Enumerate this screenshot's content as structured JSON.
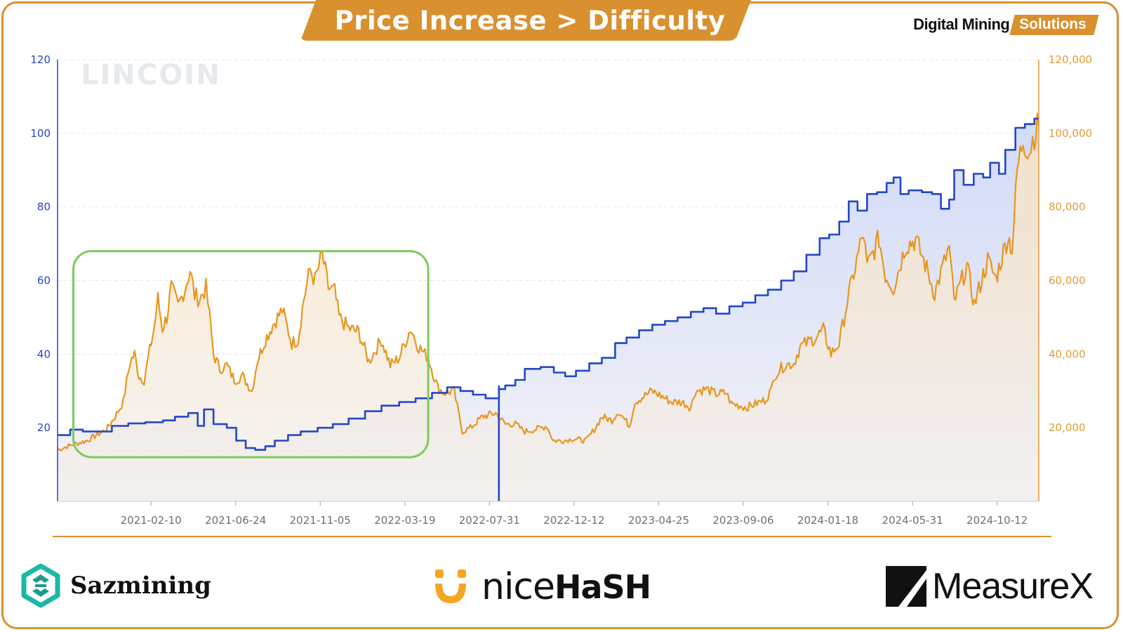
{
  "header": {
    "title": "Price Increase > Difficulty",
    "brand_main": "Digital Mining",
    "brand_accent": "Solutions",
    "accent_color": "#d9912f"
  },
  "watermark": "LINCOIN",
  "footer": {
    "sazmining": "Sazmining",
    "nicehash_part1": "nice",
    "nicehash_part2": "HaSH",
    "measurex": "MeasureX"
  },
  "chart_data": {
    "type": "line",
    "title": "",
    "xlabel": "",
    "ylabel_left": "",
    "ylabel_right": "",
    "x_start": "2020-09-15",
    "x_end": "2024-12-17",
    "x_ticks": [
      "2021-02-10",
      "2021-06-24",
      "2021-11-05",
      "2022-03-19",
      "2022-07-31",
      "2022-12-12",
      "2023-04-25",
      "2023-09-06",
      "2024-01-18",
      "2024-05-31",
      "2024-10-12"
    ],
    "left_axis": {
      "min": 0,
      "max": 120,
      "ticks": [
        "20",
        "40",
        "60",
        "80",
        "100",
        "120"
      ]
    },
    "right_axis": {
      "min": 0,
      "max": 120000,
      "ticks": [
        "20,000",
        "40,000",
        "60,000",
        "80,000",
        "100,000",
        "120,000"
      ]
    },
    "grid": true,
    "highlight_box": {
      "from": "2020-10-10",
      "to": "2022-04-25",
      "y_from": 12,
      "y_to": 68,
      "color": "#7ccb5a"
    },
    "series": [
      {
        "axis": "left",
        "color": "#2347c8",
        "points": [
          [
            "2020-09-15",
            18.0
          ],
          [
            "2020-10-05",
            19.5
          ],
          [
            "2020-10-25",
            19.0
          ],
          [
            "2020-11-20",
            19.0
          ],
          [
            "2020-12-10",
            20.5
          ],
          [
            "2021-01-05",
            21.2
          ],
          [
            "2021-02-01",
            21.5
          ],
          [
            "2021-03-01",
            22.0
          ],
          [
            "2021-03-20",
            23.0
          ],
          [
            "2021-04-10",
            24.0
          ],
          [
            "2021-04-25",
            20.5
          ],
          [
            "2021-05-05",
            25.0
          ],
          [
            "2021-05-20",
            21.0
          ],
          [
            "2021-06-10",
            20.0
          ],
          [
            "2021-06-25",
            16.5
          ],
          [
            "2021-07-10",
            14.5
          ],
          [
            "2021-07-25",
            14.0
          ],
          [
            "2021-08-10",
            15.0
          ],
          [
            "2021-08-25",
            16.5
          ],
          [
            "2021-09-15",
            18.0
          ],
          [
            "2021-10-05",
            19.0
          ],
          [
            "2021-11-01",
            20.0
          ],
          [
            "2021-11-25",
            21.0
          ],
          [
            "2021-12-20",
            22.5
          ],
          [
            "2022-01-15",
            24.5
          ],
          [
            "2022-02-10",
            26.0
          ],
          [
            "2022-03-10",
            27.0
          ],
          [
            "2022-04-05",
            28.0
          ],
          [
            "2022-05-01",
            29.5
          ],
          [
            "2022-05-25",
            31.0
          ],
          [
            "2022-06-15",
            30.0
          ],
          [
            "2022-07-05",
            29.0
          ],
          [
            "2022-07-25",
            28.0
          ],
          [
            "2022-08-15",
            30.5
          ],
          [
            "2022-08-25",
            31.5
          ],
          [
            "2022-09-10",
            33.0
          ],
          [
            "2022-09-25",
            36.0
          ],
          [
            "2022-10-20",
            36.5
          ],
          [
            "2022-11-10",
            35.0
          ],
          [
            "2022-11-28",
            34.0
          ],
          [
            "2022-12-15",
            35.5
          ],
          [
            "2023-01-05",
            37.5
          ],
          [
            "2023-01-25",
            39.0
          ],
          [
            "2023-02-15",
            43.0
          ],
          [
            "2023-03-05",
            44.5
          ],
          [
            "2023-03-25",
            46.5
          ],
          [
            "2023-04-15",
            48.0
          ],
          [
            "2023-05-05",
            49.0
          ],
          [
            "2023-05-25",
            50.0
          ],
          [
            "2023-06-15",
            51.5
          ],
          [
            "2023-07-05",
            52.5
          ],
          [
            "2023-07-25",
            51.0
          ],
          [
            "2023-08-15",
            53.0
          ],
          [
            "2023-09-05",
            54.0
          ],
          [
            "2023-09-25",
            56.0
          ],
          [
            "2023-10-15",
            57.5
          ],
          [
            "2023-11-05",
            60.0
          ],
          [
            "2023-11-25",
            62.5
          ],
          [
            "2023-12-15",
            67.0
          ],
          [
            "2024-01-05",
            71.5
          ],
          [
            "2024-01-20",
            72.5
          ],
          [
            "2024-02-05",
            76.0
          ],
          [
            "2024-02-20",
            81.5
          ],
          [
            "2024-03-05",
            79.0
          ],
          [
            "2024-03-20",
            83.5
          ],
          [
            "2024-04-05",
            84.0
          ],
          [
            "2024-04-20",
            86.5
          ],
          [
            "2024-05-01",
            88.0
          ],
          [
            "2024-05-12",
            83.5
          ],
          [
            "2024-05-25",
            84.5
          ],
          [
            "2024-06-15",
            84.0
          ],
          [
            "2024-07-01",
            83.5
          ],
          [
            "2024-07-15",
            79.5
          ],
          [
            "2024-07-28",
            82.0
          ],
          [
            "2024-08-05",
            90.0
          ],
          [
            "2024-08-20",
            86.0
          ],
          [
            "2024-09-05",
            89.0
          ],
          [
            "2024-09-20",
            88.0
          ],
          [
            "2024-10-01",
            92.0
          ],
          [
            "2024-10-15",
            89.0
          ],
          [
            "2024-10-25",
            95.5
          ],
          [
            "2024-11-10",
            101.5
          ],
          [
            "2024-11-25",
            102.5
          ],
          [
            "2024-12-10",
            104.0
          ],
          [
            "2024-12-17",
            104.0
          ]
        ]
      },
      {
        "axis": "right",
        "color": "#e8961e",
        "points": [
          [
            "2020-09-15",
            14000
          ],
          [
            "2020-10-10",
            15500
          ],
          [
            "2020-11-01",
            16500
          ],
          [
            "2020-11-15",
            18000
          ],
          [
            "2020-12-01",
            19500
          ],
          [
            "2020-12-15",
            23000
          ],
          [
            "2020-12-28",
            27000
          ],
          [
            "2021-01-08",
            38000
          ],
          [
            "2021-01-15",
            40000
          ],
          [
            "2021-01-22",
            34000
          ],
          [
            "2021-01-30",
            33000
          ],
          [
            "2021-02-08",
            41000
          ],
          [
            "2021-02-15",
            47000
          ],
          [
            "2021-02-21",
            55000
          ],
          [
            "2021-02-28",
            47000
          ],
          [
            "2021-03-07",
            50000
          ],
          [
            "2021-03-14",
            58000
          ],
          [
            "2021-03-25",
            53000
          ],
          [
            "2021-04-05",
            58000
          ],
          [
            "2021-04-13",
            63000
          ],
          [
            "2021-04-20",
            56000
          ],
          [
            "2021-04-28",
            55000
          ],
          [
            "2021-05-08",
            58000
          ],
          [
            "2021-05-14",
            50000
          ],
          [
            "2021-05-20",
            40000
          ],
          [
            "2021-05-30",
            36000
          ],
          [
            "2021-06-10",
            37000
          ],
          [
            "2021-06-22",
            33000
          ],
          [
            "2021-07-05",
            34000
          ],
          [
            "2021-07-20",
            30000
          ],
          [
            "2021-07-28",
            38000
          ],
          [
            "2021-08-10",
            44000
          ],
          [
            "2021-08-22",
            48000
          ],
          [
            "2021-09-06",
            52000
          ],
          [
            "2021-09-21",
            43000
          ],
          [
            "2021-10-01",
            44000
          ],
          [
            "2021-10-10",
            55000
          ],
          [
            "2021-10-20",
            63000
          ],
          [
            "2021-10-28",
            60000
          ],
          [
            "2021-11-08",
            67000
          ],
          [
            "2021-11-18",
            58000
          ],
          [
            "2021-11-28",
            57000
          ],
          [
            "2021-12-05",
            50000
          ],
          [
            "2021-12-20",
            47000
          ],
          [
            "2022-01-05",
            46000
          ],
          [
            "2022-01-21",
            38000
          ],
          [
            "2022-02-10",
            44000
          ],
          [
            "2022-02-24",
            37000
          ],
          [
            "2022-03-10",
            39000
          ],
          [
            "2022-03-28",
            47000
          ],
          [
            "2022-04-10",
            42000
          ],
          [
            "2022-04-25",
            39000
          ],
          [
            "2022-05-10",
            31000
          ],
          [
            "2022-05-20",
            29500
          ],
          [
            "2022-06-05",
            30000
          ],
          [
            "2022-06-18",
            19000
          ],
          [
            "2022-07-01",
            20000
          ],
          [
            "2022-07-20",
            23000
          ],
          [
            "2022-08-10",
            24000
          ],
          [
            "2022-08-25",
            21000
          ],
          [
            "2022-09-10",
            21000
          ],
          [
            "2022-09-25",
            19000
          ],
          [
            "2022-10-10",
            19500
          ],
          [
            "2022-10-30",
            20500
          ],
          [
            "2022-11-09",
            16500
          ],
          [
            "2022-11-25",
            16500
          ],
          [
            "2022-12-10",
            17000
          ],
          [
            "2022-12-31",
            16500
          ],
          [
            "2023-01-13",
            19500
          ],
          [
            "2023-01-25",
            23000
          ],
          [
            "2023-02-10",
            22000
          ],
          [
            "2023-02-20",
            24500
          ],
          [
            "2023-03-10",
            20500
          ],
          [
            "2023-03-18",
            27000
          ],
          [
            "2023-04-01",
            28500
          ],
          [
            "2023-04-14",
            30000
          ],
          [
            "2023-05-01",
            28500
          ],
          [
            "2023-05-15",
            27000
          ],
          [
            "2023-06-01",
            27000
          ],
          [
            "2023-06-15",
            25500
          ],
          [
            "2023-06-22",
            30000
          ],
          [
            "2023-07-10",
            30500
          ],
          [
            "2023-07-25",
            29200
          ],
          [
            "2023-08-10",
            29500
          ],
          [
            "2023-08-18",
            26500
          ],
          [
            "2023-09-01",
            26000
          ],
          [
            "2023-09-11",
            25500
          ],
          [
            "2023-09-25",
            26500
          ],
          [
            "2023-10-10",
            27500
          ],
          [
            "2023-10-20",
            30000
          ],
          [
            "2023-10-26",
            34500
          ],
          [
            "2023-11-10",
            37000
          ],
          [
            "2023-11-25",
            37500
          ],
          [
            "2023-12-05",
            42000
          ],
          [
            "2023-12-20",
            43500
          ],
          [
            "2024-01-02",
            45000
          ],
          [
            "2024-01-11",
            46500
          ],
          [
            "2024-01-23",
            40000
          ],
          [
            "2024-02-05",
            43000
          ],
          [
            "2024-02-15",
            52000
          ],
          [
            "2024-02-28",
            62000
          ],
          [
            "2024-03-14",
            73000
          ],
          [
            "2024-03-20",
            63500
          ],
          [
            "2024-04-08",
            71500
          ],
          [
            "2024-04-18",
            61500
          ],
          [
            "2024-05-01",
            58000
          ],
          [
            "2024-05-20",
            69500
          ],
          [
            "2024-06-05",
            71000
          ],
          [
            "2024-06-20",
            64500
          ],
          [
            "2024-07-05",
            56500
          ],
          [
            "2024-07-15",
            62000
          ],
          [
            "2024-07-28",
            69000
          ],
          [
            "2024-08-05",
            54000
          ],
          [
            "2024-08-25",
            64000
          ],
          [
            "2024-09-06",
            53500
          ],
          [
            "2024-09-27",
            65500
          ],
          [
            "2024-10-10",
            60500
          ],
          [
            "2024-10-29",
            72000
          ],
          [
            "2024-11-05",
            68500
          ],
          [
            "2024-11-13",
            90000
          ],
          [
            "2024-11-22",
            98500
          ],
          [
            "2024-12-02",
            95000
          ],
          [
            "2024-12-10",
            100000
          ],
          [
            "2024-12-17",
            102000
          ]
        ]
      }
    ]
  }
}
